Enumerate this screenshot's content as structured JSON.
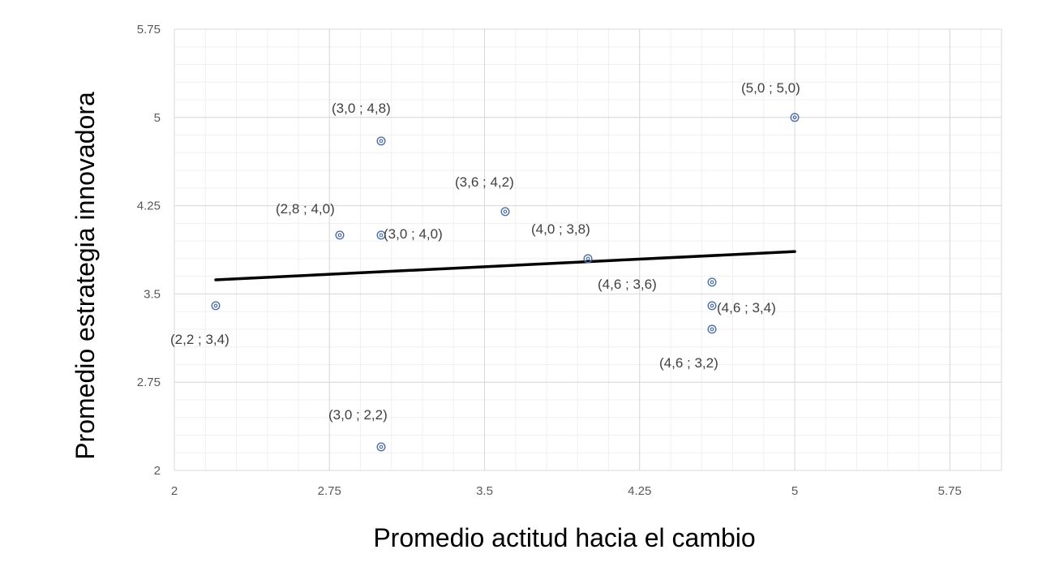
{
  "chart_data": {
    "type": "scatter",
    "title": "",
    "xlabel": "Promedio actitud hacia el cambio",
    "ylabel": "Promedio estrategia innovadora",
    "xlim": [
      2,
      6
    ],
    "ylim": [
      2,
      5.75
    ],
    "x_ticks": [
      "2",
      "2.75",
      "3.5",
      "4.25",
      "5",
      "5.75"
    ],
    "y_ticks": [
      "2",
      "2.75",
      "3.5",
      "4.25",
      "5",
      "5.75"
    ],
    "grid": true,
    "legend": "none",
    "points": [
      {
        "x": 2.2,
        "y": 3.4,
        "label": "(2,2 ; 3,4)"
      },
      {
        "x": 2.8,
        "y": 4.0,
        "label": "(2,8 ; 4,0)"
      },
      {
        "x": 3.0,
        "y": 4.8,
        "label": "(3,0 ; 4,8)"
      },
      {
        "x": 3.0,
        "y": 4.0,
        "label": "(3,0 ; 4,0)"
      },
      {
        "x": 3.0,
        "y": 2.2,
        "label": "(3,0 ; 2,2)"
      },
      {
        "x": 3.6,
        "y": 4.2,
        "label": "(3,6 ; 4,2)"
      },
      {
        "x": 4.0,
        "y": 3.8,
        "label": "(4,0 ; 3,8)"
      },
      {
        "x": 4.6,
        "y": 3.6,
        "label": "(4,6 ; 3,6)"
      },
      {
        "x": 4.6,
        "y": 3.4,
        "label": "(4,6 ; 3,4)"
      },
      {
        "x": 4.6,
        "y": 3.2,
        "label": "(4,6 ; 3,2)"
      },
      {
        "x": 5.0,
        "y": 5.0,
        "label": "(5,0 ; 5,0)"
      }
    ],
    "trendline": {
      "x": [
        2.2,
        5.0
      ],
      "y": [
        3.62,
        3.86
      ]
    },
    "colors": {
      "marker": "#4f6fa8",
      "trendline": "#000000",
      "major_grid": "#d9d9d9",
      "minor_grid": "#f0f0f0"
    }
  }
}
